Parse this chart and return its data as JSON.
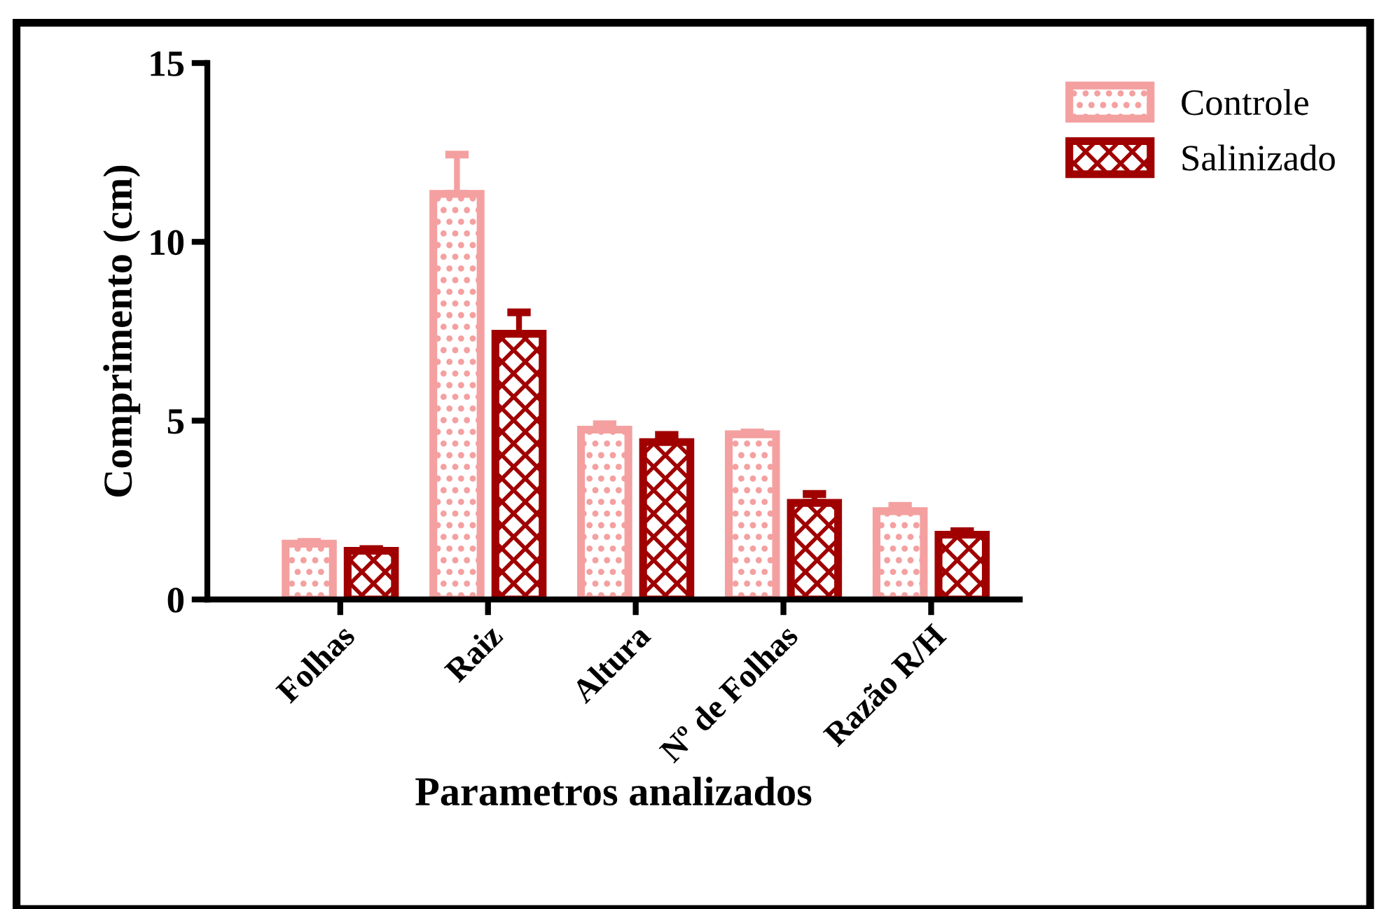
{
  "chart_data": {
    "type": "bar",
    "xlabel": "Parametros analizados",
    "ylabel": "Comprimento (cm)",
    "categories": [
      "Folhas",
      "Raiz",
      "Altura",
      "Nº de Folhas",
      "Razão R/H"
    ],
    "series": [
      {
        "name": "Controle",
        "color": "#f4a0a0",
        "values": [
          1.56,
          11.34,
          4.75,
          4.62,
          2.47
        ],
        "errors": [
          0.05,
          1.1,
          0.15,
          0.05,
          0.15
        ]
      },
      {
        "name": "Salinizado",
        "color": "#a00000",
        "values": [
          1.36,
          7.43,
          4.4,
          2.7,
          1.81
        ],
        "errors": [
          0.05,
          0.6,
          0.2,
          0.25,
          0.1
        ]
      }
    ],
    "ylim": [
      0,
      15
    ],
    "yticks": [
      0,
      5,
      10,
      15
    ],
    "grid": false,
    "legend": "top right"
  }
}
